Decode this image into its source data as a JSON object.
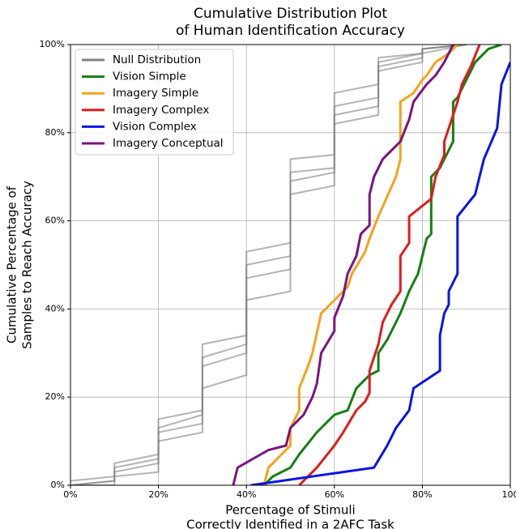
{
  "chart_data": {
    "type": "line",
    "title": [
      "Cumulative Distribution Plot",
      "of Human Identification Accuracy"
    ],
    "xlabel": [
      "Percentage of Stimuli",
      "Correctly Identified in a 2AFC Task"
    ],
    "ylabel": [
      "Cumulative Percentage of",
      "Samples to Reach Accuracy"
    ],
    "xlim": [
      0,
      100
    ],
    "ylim": [
      0,
      100
    ],
    "xticks": [
      {
        "value": 0,
        "label": "0%"
      },
      {
        "value": 20,
        "label": "20%"
      },
      {
        "value": 40,
        "label": "40%"
      },
      {
        "value": 60,
        "label": "60%"
      },
      {
        "value": 80,
        "label": "80%"
      },
      100
    ],
    "yticks": [
      {
        "value": 0,
        "label": "0%"
      },
      {
        "value": 20,
        "label": "20%"
      },
      {
        "value": 40,
        "label": "40%"
      },
      {
        "value": 60,
        "label": "60%"
      },
      {
        "value": 80,
        "label": "80%"
      },
      {
        "value": 100,
        "label": "100%"
      }
    ],
    "grid": true,
    "legend": "upper left",
    "series": [
      {
        "name": "Null Distribution",
        "color": "#808080",
        "lines": [
          {
            "x": [
              0,
              10,
              10,
              20,
              20,
              30,
              30,
              40,
              40,
              50,
              50,
              60,
              60,
              70,
              70,
              80,
              80,
              90
            ],
            "values": [
              0,
              1,
              3,
              5,
              12,
              14,
              27,
              30,
              47,
              49,
              71,
              72,
              86,
              88,
              96,
              98,
              99,
              100
            ]
          },
          {
            "x": [
              0,
              10,
              10,
              20,
              20,
              30,
              30,
              40,
              40,
              50,
              50,
              60,
              60,
              70,
              70,
              80,
              80,
              90
            ],
            "values": [
              1,
              2,
              5,
              7,
              15,
              17,
              32,
              34,
              53,
              55,
              74,
              75,
              89,
              91,
              97,
              98,
              99,
              100
            ]
          },
          {
            "x": [
              0,
              10,
              10,
              20,
              20,
              30,
              30,
              40,
              40,
              50,
              50,
              60,
              60,
              70,
              70,
              80,
              80,
              90
            ],
            "values": [
              0,
              0,
              2,
              3,
              10,
              12,
              22,
              25,
              42,
              44,
              66,
              68,
              82,
              84,
              94,
              96,
              98,
              100
            ]
          },
          {
            "x": [
              0,
              10,
              10,
              20,
              20,
              30,
              30,
              40,
              40,
              50,
              50,
              60,
              60,
              70,
              70,
              80,
              80,
              90
            ],
            "values": [
              0,
              1,
              4,
              6,
              13,
              16,
              29,
              32,
              50,
              52,
              69,
              71,
              84,
              86,
              95,
              97,
              99,
              100
            ]
          }
        ]
      },
      {
        "name": "Vision Simple",
        "color": "#138013",
        "x": [
          44,
          46,
          50,
          52,
          56,
          60,
          63,
          65,
          68,
          70,
          70,
          72,
          75,
          77,
          79,
          80,
          81,
          82,
          82,
          84,
          87,
          87,
          88,
          92,
          95,
          98
        ],
        "values": [
          0,
          2,
          4,
          7,
          12,
          16,
          17,
          22,
          25,
          26,
          30,
          33,
          39,
          44,
          48,
          52,
          56,
          57,
          70,
          72,
          78,
          87,
          88,
          96,
          99,
          100
        ]
      },
      {
        "name": "Imagery Simple",
        "color": "#f5a31a",
        "x": [
          44,
          45,
          48,
          50,
          50,
          52,
          52,
          54,
          55,
          57,
          60,
          63,
          64,
          67,
          68,
          70,
          74,
          75,
          75,
          78,
          80,
          81,
          83,
          86,
          88
        ],
        "values": [
          0,
          4,
          7,
          9,
          13,
          17,
          22,
          27,
          30,
          39,
          42,
          45,
          48,
          53,
          56,
          61,
          70,
          74,
          87,
          89,
          92,
          93,
          96,
          98,
          100
        ]
      },
      {
        "name": "Imagery Complex",
        "color": "#e41a1c",
        "x": [
          52,
          53,
          55,
          56,
          60,
          62,
          65,
          67,
          68,
          68,
          70,
          71,
          73,
          75,
          75,
          75,
          77,
          77,
          82,
          83,
          85,
          85,
          87,
          88,
          89,
          91,
          93
        ],
        "values": [
          0,
          1,
          3,
          4,
          9,
          12,
          17,
          19,
          21,
          26,
          32,
          37,
          41,
          44,
          48,
          52,
          55,
          61,
          65,
          70,
          75,
          78,
          84,
          87,
          91,
          95,
          100
        ]
      },
      {
        "name": "Vision Complex",
        "color": "#0a14e6",
        "x": [
          41,
          69,
          72,
          74,
          77,
          78,
          84,
          84,
          85,
          86,
          86,
          88,
          88,
          92,
          93,
          94,
          97,
          98,
          100
        ],
        "values": [
          0,
          4,
          9,
          13,
          17,
          22,
          26,
          34,
          39,
          41,
          44,
          48,
          61,
          66,
          70,
          74,
          81,
          91,
          96
        ]
      },
      {
        "name": "Imagery Conceptual",
        "color": "#7b1481",
        "x": [
          37,
          38,
          45,
          49,
          50,
          53,
          55,
          56,
          57,
          60,
          60,
          62,
          63,
          65,
          66,
          68,
          68,
          69,
          71,
          75,
          77,
          78,
          81,
          83,
          85,
          87
        ],
        "values": [
          0,
          4,
          8,
          9,
          13,
          16,
          20,
          23,
          30,
          35,
          38,
          43,
          48,
          52,
          57,
          59,
          66,
          70,
          74,
          78,
          83,
          87,
          91,
          93,
          96,
          100
        ]
      }
    ]
  }
}
